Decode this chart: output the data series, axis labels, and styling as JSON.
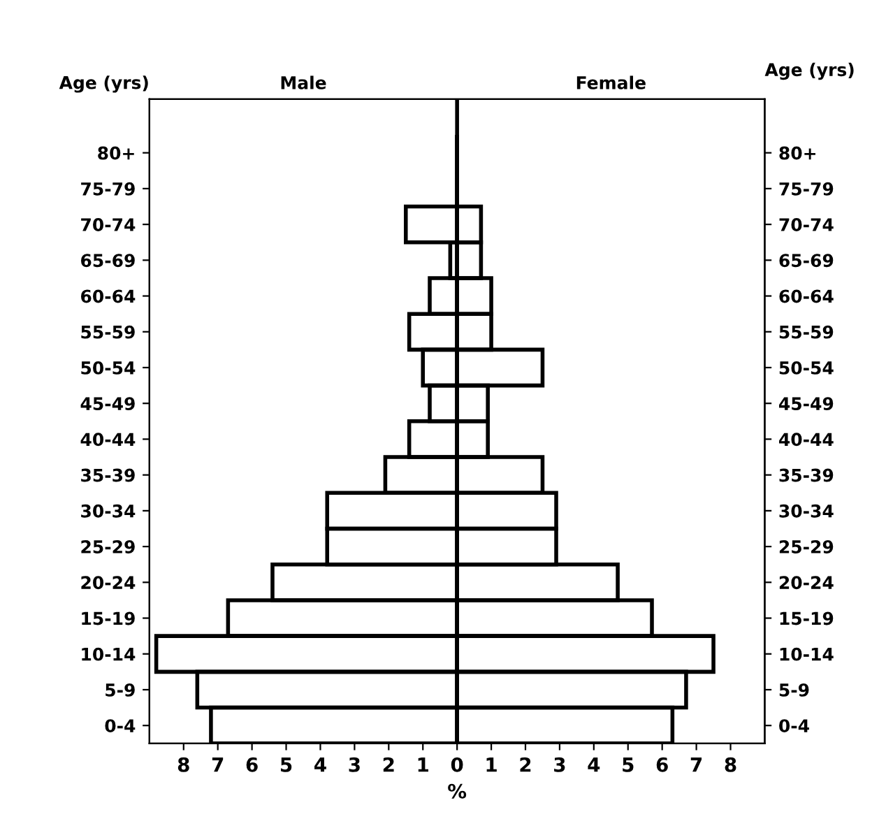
{
  "chart_data": {
    "type": "bar",
    "orientation": "horizontal",
    "ylabel": "Age (yrs)",
    "y2label": "Age (yrs)",
    "xlabel": "%",
    "categories": [
      "80+",
      "75-79",
      "70-74",
      "65-69",
      "60-64",
      "55-59",
      "50-54",
      "45-49",
      "40-44",
      "35-39",
      "30-34",
      "25-29",
      "20-24",
      "15-19",
      "10-14",
      "5-9",
      "0-4"
    ],
    "y2_categories": [
      "80+",
      "75-79",
      "70-74",
      "65-69",
      "60-64",
      "55-59",
      "50-54",
      "45-49",
      "40-44",
      "35-39",
      "30-34",
      "25-29",
      "20-24",
      "15-19",
      "10-14",
      "5-9",
      "0-4"
    ],
    "series": [
      {
        "color": "#000000",
        "values": [
          0,
          0,
          -1.5,
          -0.2,
          -0.8,
          -1.4,
          -1.0,
          -0.8,
          -1.4,
          -2.1,
          -3.8,
          -3.8,
          -5.4,
          -6.7,
          -8.8,
          -7.6,
          -7.2
        ]
      },
      {
        "color": "#000000",
        "values": [
          0,
          0,
          0.7,
          0.7,
          1.0,
          1.0,
          2.5,
          0.9,
          0.9,
          2.5,
          2.9,
          2.9,
          4.7,
          5.7,
          7.5,
          6.7,
          6.3
        ]
      }
    ],
    "xlim": [
      -9,
      9
    ],
    "xticks": [
      {
        "value": -8,
        "label": "8"
      },
      {
        "value": -7,
        "label": "7"
      },
      {
        "value": -6,
        "label": "6"
      },
      {
        "value": -5,
        "label": "5"
      },
      {
        "value": -4,
        "label": "4"
      },
      {
        "value": -3,
        "label": "3"
      },
      {
        "value": -2,
        "label": "2"
      },
      {
        "value": -1,
        "label": "1"
      },
      0,
      1,
      2,
      3,
      4,
      5,
      6,
      7,
      8
    ],
    "ref_lines": [
      {
        "axis": "x",
        "value": 0
      }
    ],
    "annotations": [
      "Male",
      "Female"
    ],
    "grid": false,
    "legend": false
  }
}
